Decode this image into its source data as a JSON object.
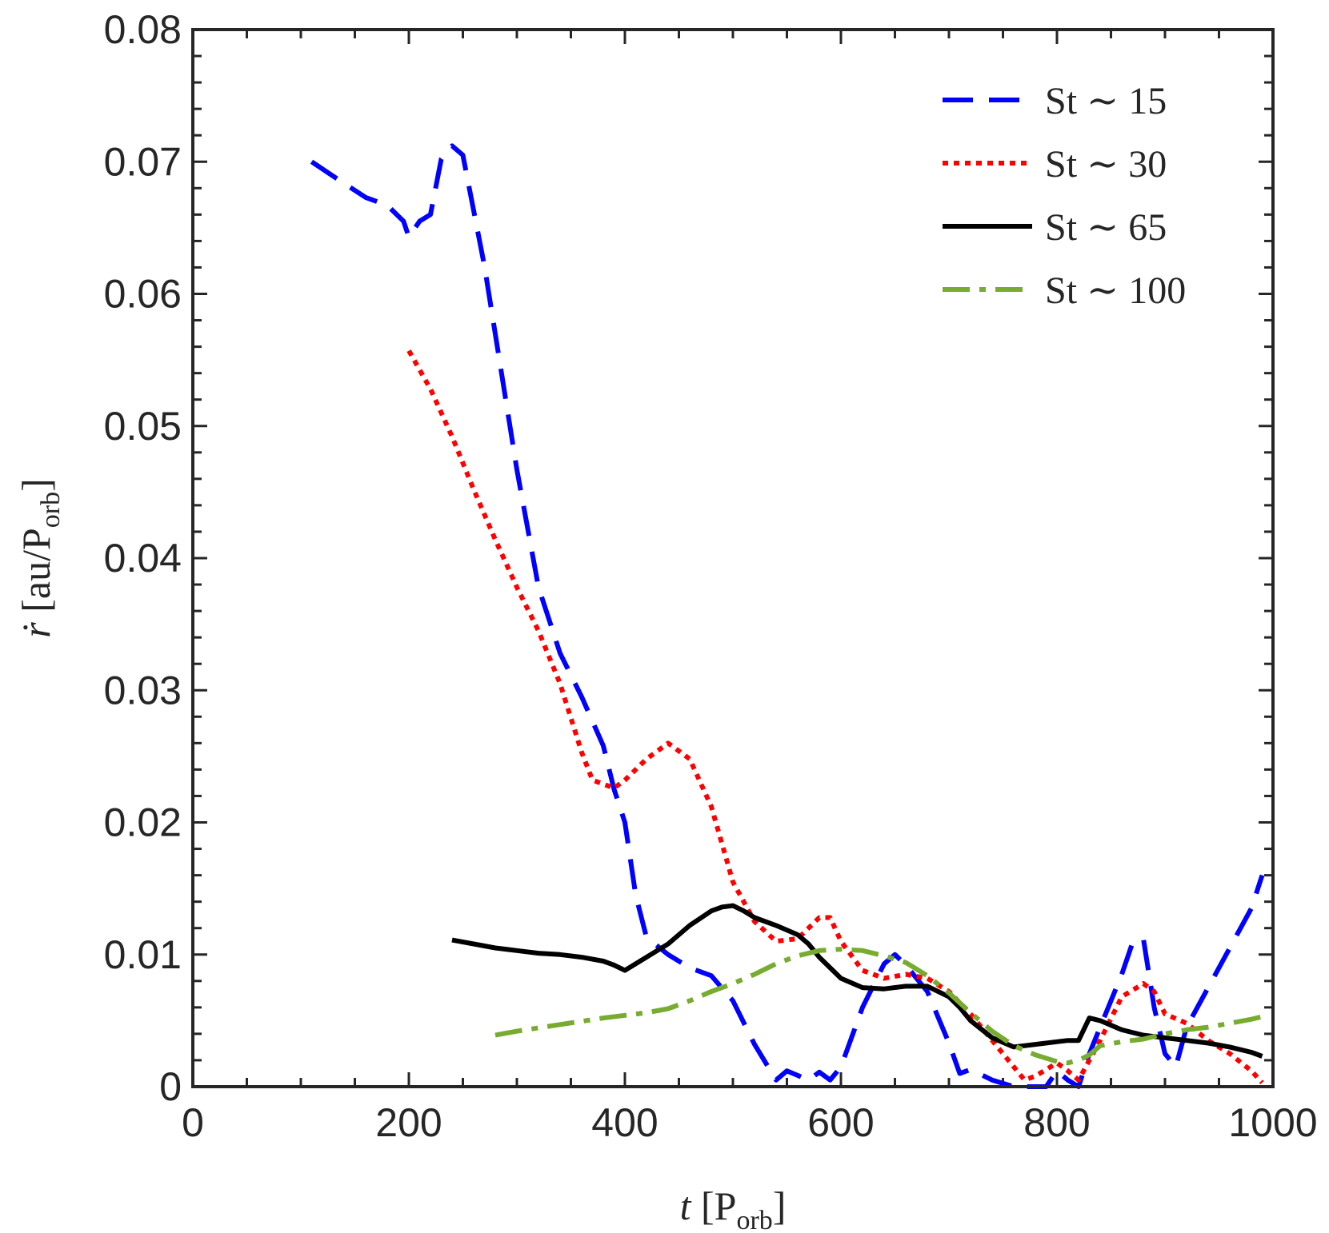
{
  "chart_data": {
    "type": "line",
    "title": "",
    "xlabel": {
      "var": "t",
      "unit": "P",
      "unit_sub": "orb"
    },
    "ylabel": {
      "var": "ṙ",
      "unit": "au/P",
      "unit_sub": "orb"
    },
    "xlim": [
      0,
      1000
    ],
    "ylim": [
      0,
      0.08
    ],
    "xticks": [
      0,
      200,
      400,
      600,
      800,
      1000
    ],
    "xtick_labels": [
      "0",
      "200",
      "400",
      "600",
      "800",
      "1000"
    ],
    "yticks": [
      0,
      0.01,
      0.02,
      0.03,
      0.04,
      0.05,
      0.06,
      0.07,
      0.08
    ],
    "ytick_labels": [
      "0",
      "0.01",
      "0.02",
      "0.03",
      "0.04",
      "0.05",
      "0.06",
      "0.07",
      "0.08"
    ],
    "grid": false,
    "legend_position": "top-right",
    "series": [
      {
        "name": "St ∼ 15",
        "color": "#0000ff",
        "style": "dashed",
        "x": [
          110,
          130,
          160,
          180,
          195,
          200,
          210,
          220,
          230,
          240,
          250,
          270,
          300,
          320,
          340,
          360,
          380,
          390,
          400,
          410,
          420,
          440,
          460,
          480,
          500,
          520,
          540,
          550,
          570,
          580,
          590,
          600,
          620,
          640,
          650,
          660,
          680,
          700,
          710,
          720,
          740,
          760,
          780,
          790,
          800,
          810,
          820,
          830,
          840,
          860,
          870,
          880,
          890,
          900,
          910,
          920,
          940,
          960,
          980,
          990
        ],
        "values": [
          0.07,
          0.0689,
          0.0673,
          0.0667,
          0.0655,
          0.0643,
          0.0655,
          0.066,
          0.0702,
          0.0712,
          0.0705,
          0.0621,
          0.0467,
          0.0378,
          0.0328,
          0.0295,
          0.0258,
          0.0225,
          0.02,
          0.0145,
          0.0113,
          0.01,
          0.009,
          0.0084,
          0.0065,
          0.0032,
          0.0005,
          0.0012,
          0.0005,
          0.0011,
          0.0005,
          0.0015,
          0.006,
          0.0093,
          0.01,
          0.0092,
          0.0072,
          0.0033,
          0.001,
          0.0013,
          0.0005,
          0.0,
          0.0,
          0.0,
          0.0012,
          0.0005,
          0.0,
          0.0025,
          0.0045,
          0.0085,
          0.0109,
          0.0112,
          0.006,
          0.0025,
          0.0015,
          0.0045,
          0.0075,
          0.0105,
          0.0135,
          0.016
        ]
      },
      {
        "name": "St ∼ 30",
        "color": "#ff0000",
        "style": "dotted",
        "x": [
          200,
          220,
          240,
          260,
          280,
          300,
          320,
          340,
          360,
          370,
          380,
          390,
          400,
          420,
          440,
          460,
          480,
          500,
          520,
          540,
          560,
          580,
          590,
          600,
          620,
          640,
          660,
          680,
          700,
          720,
          740,
          760,
          770,
          780,
          800,
          810,
          820,
          840,
          860,
          880,
          890,
          900,
          920,
          940,
          960,
          980,
          990
        ],
        "values": [
          0.0557,
          0.0528,
          0.0492,
          0.0452,
          0.0414,
          0.0378,
          0.0345,
          0.0305,
          0.0253,
          0.0232,
          0.0229,
          0.0226,
          0.0232,
          0.0248,
          0.026,
          0.0248,
          0.0212,
          0.0155,
          0.0125,
          0.011,
          0.0112,
          0.0128,
          0.0128,
          0.011,
          0.0088,
          0.0082,
          0.0085,
          0.0082,
          0.0072,
          0.0055,
          0.0035,
          0.0015,
          0.0005,
          0.0008,
          0.0018,
          0.0012,
          0.0005,
          0.0035,
          0.0068,
          0.0078,
          0.0072,
          0.0055,
          0.0048,
          0.0035,
          0.0025,
          0.0012,
          0.0003
        ]
      },
      {
        "name": "St ∼ 65",
        "color": "#000000",
        "style": "solid",
        "x": [
          240,
          260,
          280,
          300,
          320,
          340,
          360,
          380,
          390,
          400,
          410,
          420,
          440,
          460,
          480,
          490,
          500,
          510,
          520,
          540,
          560,
          570,
          580,
          590,
          600,
          620,
          640,
          660,
          680,
          700,
          710,
          720,
          740,
          760,
          780,
          800,
          810,
          820,
          830,
          840,
          860,
          880,
          900,
          920,
          940,
          960,
          980,
          990
        ],
        "values": [
          0.0111,
          0.0108,
          0.0105,
          0.0103,
          0.0101,
          0.01,
          0.0098,
          0.0095,
          0.0092,
          0.0088,
          0.0093,
          0.0098,
          0.0108,
          0.0122,
          0.0133,
          0.0136,
          0.0137,
          0.0133,
          0.0128,
          0.0122,
          0.0115,
          0.0108,
          0.0098,
          0.009,
          0.0082,
          0.0075,
          0.0074,
          0.0076,
          0.0076,
          0.0068,
          0.006,
          0.005,
          0.0037,
          0.003,
          0.0032,
          0.0034,
          0.0035,
          0.0035,
          0.0052,
          0.005,
          0.0043,
          0.0039,
          0.0037,
          0.0035,
          0.0033,
          0.003,
          0.0026,
          0.0023
        ]
      },
      {
        "name": "St ∼ 100",
        "color": "#77ac30",
        "style": "dashdot",
        "x": [
          280,
          300,
          340,
          380,
          420,
          440,
          460,
          480,
          500,
          520,
          540,
          560,
          580,
          600,
          620,
          640,
          660,
          680,
          700,
          720,
          740,
          760,
          780,
          800,
          810,
          820,
          830,
          840,
          860,
          880,
          900,
          920,
          940,
          960,
          980,
          990
        ],
        "values": [
          0.0039,
          0.0042,
          0.0047,
          0.0052,
          0.0056,
          0.0059,
          0.0065,
          0.0072,
          0.0078,
          0.0085,
          0.0093,
          0.0099,
          0.0103,
          0.0104,
          0.0103,
          0.0099,
          0.0094,
          0.0084,
          0.0071,
          0.0056,
          0.0042,
          0.0031,
          0.0024,
          0.0019,
          0.0018,
          0.002,
          0.0024,
          0.0031,
          0.0034,
          0.0036,
          0.004,
          0.0043,
          0.0045,
          0.0048,
          0.0051,
          0.0053
        ]
      }
    ]
  }
}
